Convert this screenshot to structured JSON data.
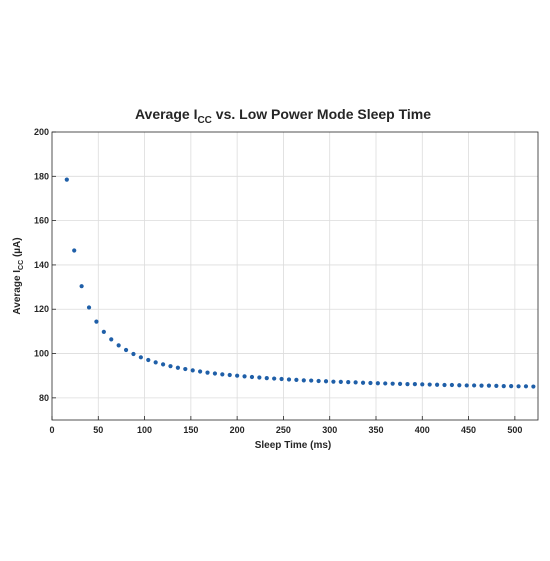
{
  "chart_data": {
    "type": "scatter",
    "title": "Average I",
    "title_subscript": "CC",
    "title_suffix": " vs. Low Power Mode Sleep Time",
    "xlabel": "Sleep Time (ms)",
    "ylabel": "Average I",
    "ylabel_subscript": "CC",
    "ylabel_suffix": " (µA)",
    "xlim": [
      0,
      525
    ],
    "ylim": [
      70,
      200
    ],
    "x_ticks": [
      0,
      50,
      100,
      150,
      200,
      250,
      300,
      350,
      400,
      450,
      500
    ],
    "y_ticks": [
      80,
      100,
      120,
      140,
      160,
      180,
      200
    ],
    "grid": true,
    "marker_color": "#1f5fa8",
    "series": [
      {
        "x": [
          16,
          24,
          32,
          40,
          48,
          56,
          64,
          72,
          80,
          88,
          96,
          104,
          112,
          120,
          128,
          136,
          144,
          152,
          160,
          168,
          176,
          184,
          192,
          200,
          208,
          216,
          224,
          232,
          240,
          248,
          256,
          264,
          272,
          280,
          288,
          296,
          304,
          312,
          320,
          328,
          336,
          344,
          352,
          360,
          368,
          376,
          384,
          392,
          400,
          408,
          416,
          424,
          432,
          440,
          448,
          456,
          464,
          472,
          480,
          488,
          496,
          504,
          512,
          520
        ],
        "y": [
          178.5,
          146.5,
          130.4,
          120.8,
          114.4,
          109.8,
          106.4,
          103.7,
          101.6,
          99.8,
          98.3,
          97.1,
          96.0,
          95.1,
          94.3,
          93.6,
          93.0,
          92.4,
          91.9,
          91.4,
          91.0,
          90.6,
          90.3,
          90.0,
          89.7,
          89.4,
          89.2,
          88.9,
          88.7,
          88.5,
          88.3,
          88.1,
          87.9,
          87.8,
          87.6,
          87.5,
          87.3,
          87.2,
          87.1,
          87.0,
          86.8,
          86.7,
          86.6,
          86.5,
          86.4,
          86.3,
          86.2,
          86.2,
          86.1,
          86.0,
          85.9,
          85.8,
          85.8,
          85.7,
          85.6,
          85.6,
          85.5,
          85.5,
          85.4,
          85.3,
          85.3,
          85.2,
          85.2,
          85.1
        ]
      }
    ]
  }
}
